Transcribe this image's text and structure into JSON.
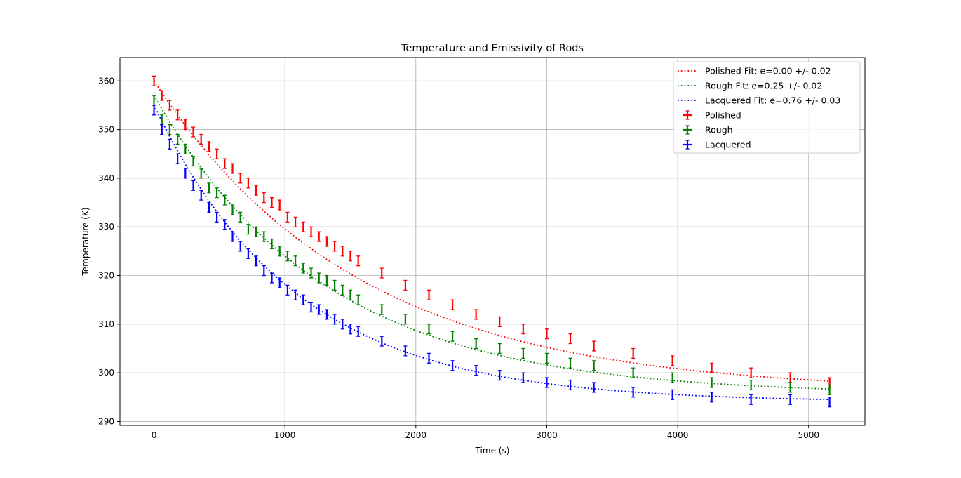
{
  "chart_data": {
    "type": "scatter",
    "title": "Temperature and Emissivity of Rods",
    "xlabel": "Time (s)",
    "ylabel": "Temperature (K)",
    "xlim": [
      -260,
      5430
    ],
    "ylim": [
      289.2,
      364.8
    ],
    "xticks": [
      0,
      1000,
      2000,
      3000,
      4000,
      5000
    ],
    "yticks": [
      290,
      300,
      310,
      320,
      330,
      340,
      350,
      360
    ],
    "grid": true,
    "legend_position": "top-right",
    "yerr": 1.0,
    "fits": [
      {
        "label": "Polished Fit: e=0.00 +/- 0.02",
        "color": "#ff0000",
        "linestyle": "dotted",
        "T0": 360,
        "Tinf": 296.0,
        "tau": 1550
      },
      {
        "label": "Rough Fit: e=0.25 +/- 0.02",
        "color": "#008000",
        "linestyle": "dotted",
        "T0": 357,
        "Tinf": 295.5,
        "tau": 1300
      },
      {
        "label": "Lacquered Fit: e=0.76 +/- 0.03",
        "color": "#0000ff",
        "linestyle": "dotted",
        "T0": 355,
        "Tinf": 294.0,
        "tau": 1080
      }
    ],
    "series": [
      {
        "name": "Polished",
        "color": "#ff0000",
        "x": [
          0,
          60,
          120,
          180,
          240,
          300,
          360,
          420,
          480,
          540,
          600,
          660,
          720,
          780,
          840,
          900,
          960,
          1020,
          1080,
          1140,
          1200,
          1260,
          1320,
          1380,
          1440,
          1500,
          1560,
          1740,
          1920,
          2100,
          2280,
          2460,
          2640,
          2820,
          3000,
          3180,
          3360,
          3660,
          3960,
          4260,
          4560,
          4860,
          5160
        ],
        "y": [
          360,
          357,
          355,
          353,
          351,
          349.5,
          348,
          346.5,
          345,
          343,
          342,
          340,
          339,
          337.5,
          336,
          335,
          334.5,
          332,
          331,
          330,
          329,
          328,
          327,
          326,
          325,
          324,
          323,
          320.5,
          318,
          316,
          314,
          312,
          310.5,
          309,
          308,
          307,
          305.5,
          304,
          302.5,
          301,
          300,
          299,
          298
        ]
      },
      {
        "name": "Rough",
        "color": "#008000",
        "x": [
          0,
          60,
          120,
          180,
          240,
          300,
          360,
          420,
          480,
          540,
          600,
          660,
          720,
          780,
          840,
          900,
          960,
          1020,
          1080,
          1140,
          1200,
          1260,
          1320,
          1380,
          1440,
          1500,
          1560,
          1740,
          1920,
          2100,
          2280,
          2460,
          2640,
          2820,
          3000,
          3180,
          3360,
          3660,
          3960,
          4260,
          4560,
          4860,
          5160
        ],
        "y": [
          356,
          352,
          350,
          348,
          346,
          343.5,
          341,
          338,
          337,
          335.5,
          333.5,
          332,
          329.5,
          329,
          328,
          326.5,
          325,
          324,
          323,
          321.5,
          320.5,
          319.5,
          319,
          318,
          317,
          316,
          315,
          313,
          311,
          309,
          307.5,
          306,
          305,
          304,
          303,
          302,
          301.5,
          300,
          299,
          298,
          297.5,
          297,
          296.5
        ]
      },
      {
        "name": "Lacquered",
        "color": "#0000ff",
        "x": [
          0,
          60,
          120,
          180,
          240,
          300,
          360,
          420,
          480,
          540,
          600,
          660,
          720,
          780,
          840,
          900,
          960,
          1020,
          1080,
          1140,
          1200,
          1260,
          1320,
          1380,
          1440,
          1500,
          1560,
          1740,
          1920,
          2100,
          2280,
          2460,
          2640,
          2820,
          3000,
          3180,
          3360,
          3660,
          3960,
          4260,
          4560,
          4860,
          5160
        ],
        "y": [
          354,
          350,
          347,
          344,
          341,
          338.5,
          336.5,
          334,
          332,
          330.5,
          328,
          326,
          324.5,
          323,
          321,
          319.5,
          318.5,
          317,
          316,
          315,
          313.5,
          313,
          312,
          311,
          310,
          309,
          308.5,
          306.5,
          304.5,
          303,
          301.5,
          300.5,
          299.5,
          299,
          298,
          297.5,
          297,
          296,
          295.5,
          295,
          294.5,
          294.5,
          294
        ]
      }
    ]
  }
}
